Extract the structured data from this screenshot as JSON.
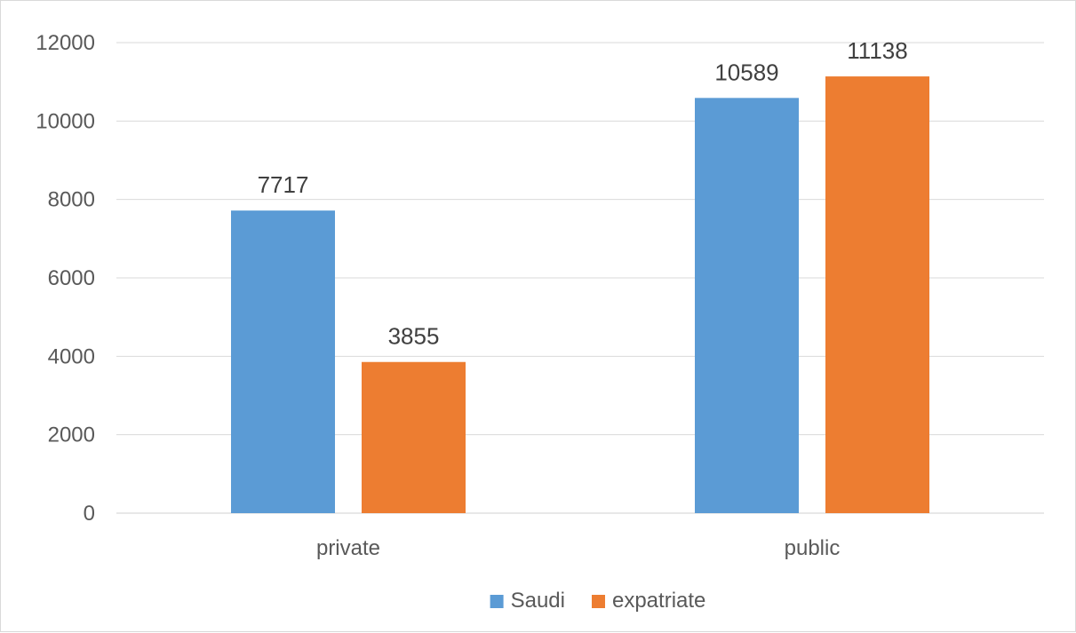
{
  "chart_data": {
    "type": "bar",
    "categories": [
      "private",
      "public"
    ],
    "series": [
      {
        "name": "Saudi",
        "values": [
          7717,
          10589
        ],
        "color": "#5B9BD5"
      },
      {
        "name": "expatriate",
        "values": [
          3855,
          11138
        ],
        "color": "#ED7D31"
      }
    ],
    "ylim": [
      0,
      12000
    ],
    "yticks": [
      0,
      2000,
      4000,
      6000,
      8000,
      10000,
      12000
    ],
    "grid": true,
    "legend_position": "bottom",
    "data_labels": true
  }
}
